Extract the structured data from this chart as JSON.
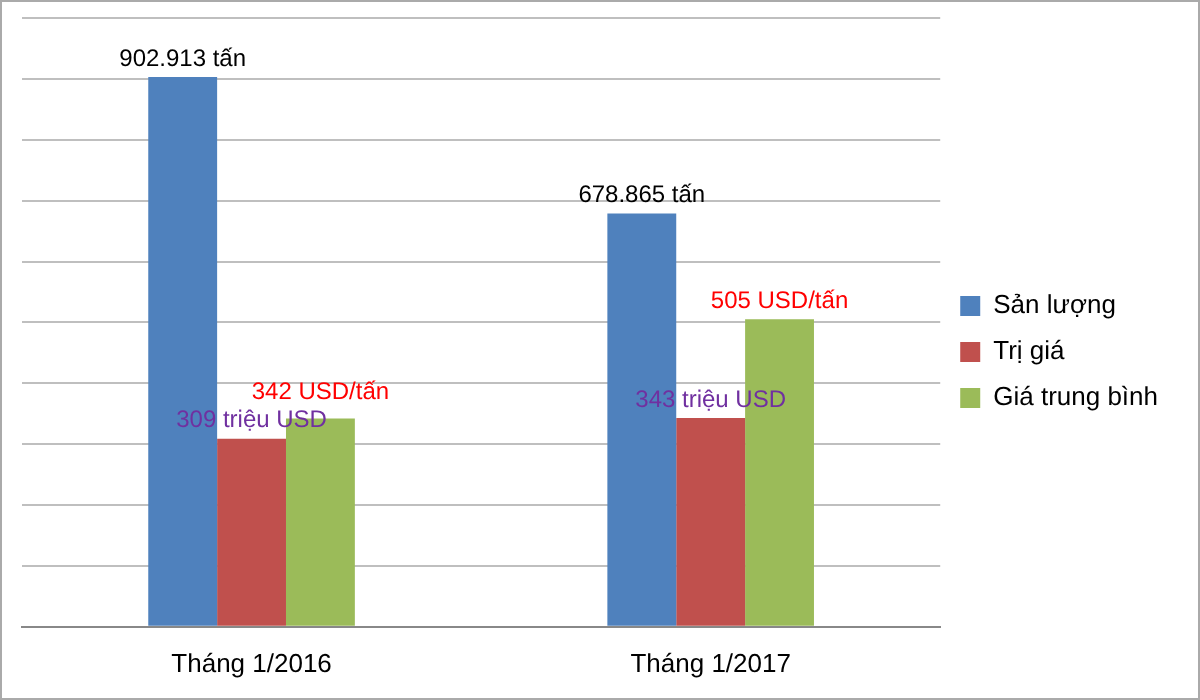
{
  "chart_data": {
    "type": "bar",
    "categories": [
      "Tháng 1/2016",
      "Tháng 1/2017"
    ],
    "series": [
      {
        "name": "Sản lượng",
        "color": "#4f81bd",
        "values": [
          902.913,
          678.865
        ],
        "value_labels": [
          "902.913 tấn",
          "678.865 tấn"
        ]
      },
      {
        "name": "Trị giá",
        "color": "#c0504d",
        "values": [
          309,
          343
        ],
        "value_labels": [
          "309 triệu USD",
          "343 triệu USD"
        ]
      },
      {
        "name": "Giá trung bình",
        "color": "#9bbb59",
        "values": [
          342,
          505
        ],
        "value_labels": [
          "342 USD/tấn",
          "505 USD/tấn"
        ]
      }
    ],
    "ylim": [
      0,
      1000
    ],
    "yticks": [
      {
        "value": 0,
        "label": null
      },
      {
        "value": 100,
        "label": null
      },
      {
        "value": 200,
        "label": null
      },
      {
        "value": 300,
        "label": null
      },
      {
        "value": 400,
        "label": null
      },
      {
        "value": 500,
        "label": null
      },
      {
        "value": 600,
        "label": null
      },
      {
        "value": 700,
        "label": null
      },
      {
        "value": 800,
        "label": null
      },
      {
        "value": 900,
        "label": null
      },
      {
        "value": 1000,
        "label": null
      }
    ],
    "tick_labels": "x",
    "grid": "y",
    "legend": "right"
  }
}
